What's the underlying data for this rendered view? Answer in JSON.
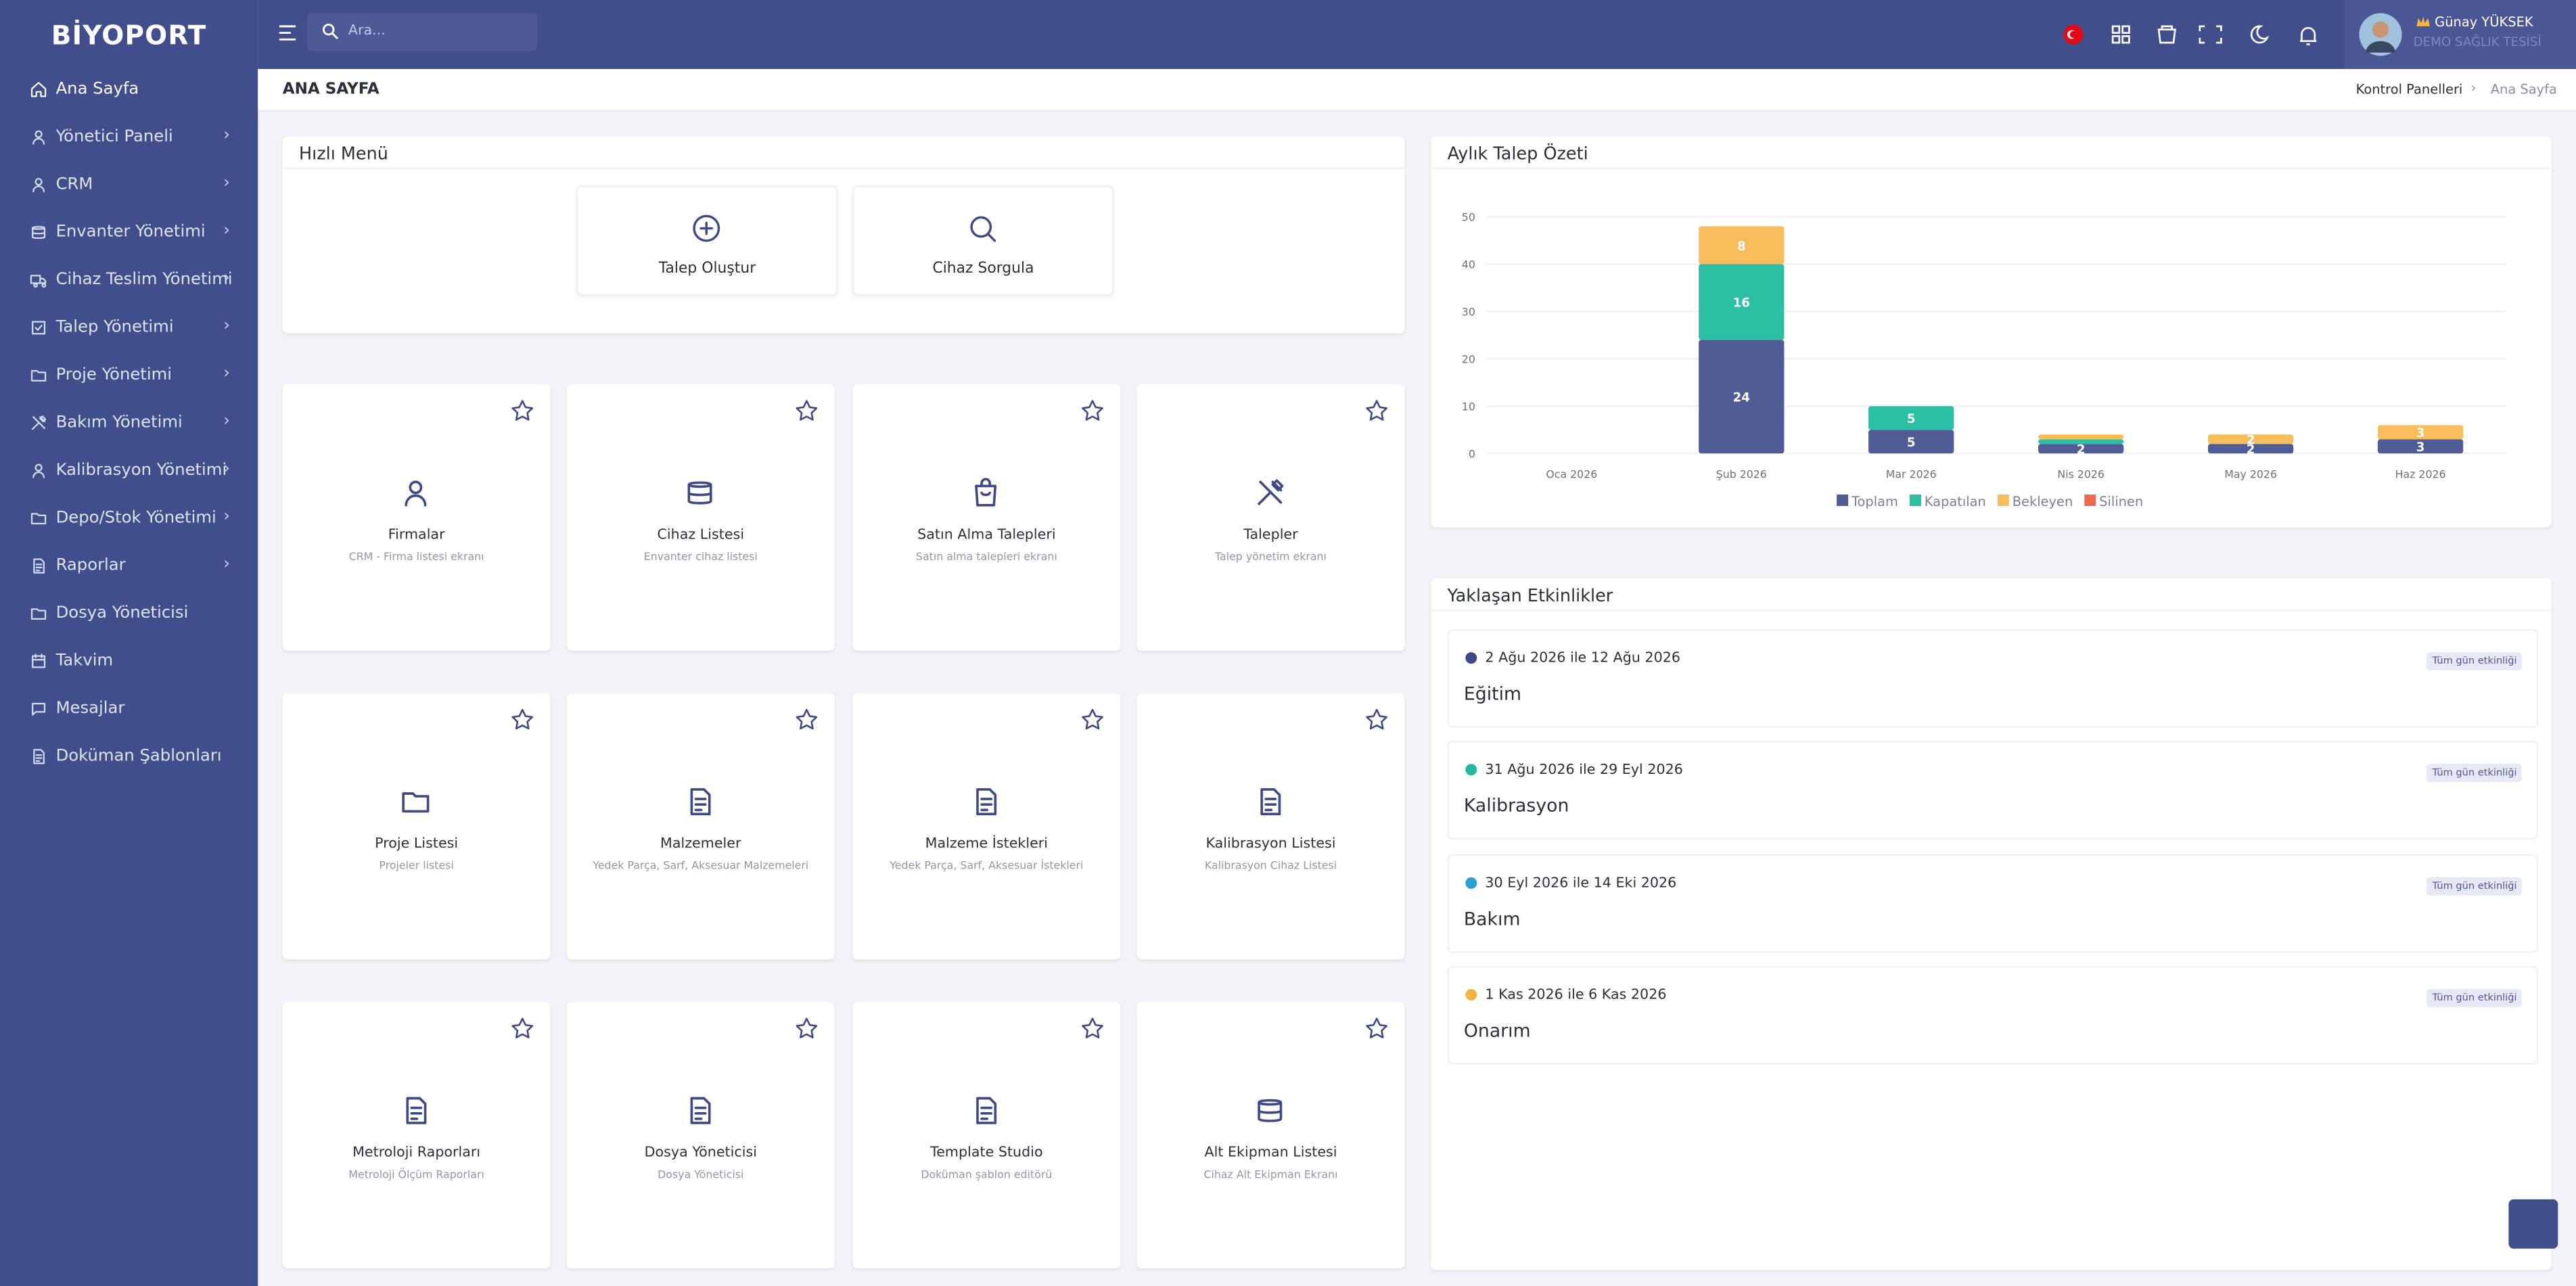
{
  "sidebar": {
    "logo": "BİYOPORT",
    "items": [
      {
        "label": "Ana Sayfa",
        "submenu": false
      },
      {
        "label": "Yönetici Paneli",
        "submenu": true
      },
      {
        "label": "CRM",
        "submenu": true
      },
      {
        "label": "Envanter Yönetimi",
        "submenu": true
      },
      {
        "label": "Cihaz Teslim Yönetimi",
        "submenu": true
      },
      {
        "label": "Talep Yönetimi",
        "submenu": true
      },
      {
        "label": "Proje Yönetimi",
        "submenu": true
      },
      {
        "label": "Bakım Yönetimi",
        "submenu": true
      },
      {
        "label": "Kalibrasyon Yönetimi",
        "submenu": true
      },
      {
        "label": "Depo/Stok Yönetimi",
        "submenu": true
      },
      {
        "label": "Raporlar",
        "submenu": true
      },
      {
        "label": "Dosya Yöneticisi",
        "submenu": false
      },
      {
        "label": "Takvim",
        "submenu": false
      },
      {
        "label": "Mesajlar",
        "submenu": false
      },
      {
        "label": "Doküman Şablonları",
        "submenu": false
      }
    ]
  },
  "header": {
    "search_placeholder": "Ara...",
    "user_name": "Günay YÜKSEK",
    "user_org": "DEMO SAĞLIK TESİSİ"
  },
  "page": {
    "title": "ANA SAYFA",
    "breadcrumb": [
      "Kontrol Panelleri",
      "Ana Sayfa"
    ]
  },
  "quick_menu": {
    "title": "Hızlı Menü",
    "items": [
      "Talep Oluştur",
      "Cihaz Sorgula"
    ]
  },
  "cards": [
    {
      "title": "Firmalar",
      "subtitle": "CRM - Firma listesi ekranı"
    },
    {
      "title": "Cihaz Listesi",
      "subtitle": "Envanter cihaz listesi"
    },
    {
      "title": "Satın Alma Talepleri",
      "subtitle": "Satın alma talepleri ekranı"
    },
    {
      "title": "Talepler",
      "subtitle": "Talep yönetim ekranı"
    },
    {
      "title": "Proje Listesi",
      "subtitle": "Projeler listesi"
    },
    {
      "title": "Malzemeler",
      "subtitle": "Yedek Parça, Sarf, Aksesuar Malzemeleri"
    },
    {
      "title": "Malzeme İstekleri",
      "subtitle": "Yedek Parça, Sarf, Aksesuar İstekleri"
    },
    {
      "title": "Kalibrasyon Listesi",
      "subtitle": "Kalibrasyon Cihaz Listesi"
    },
    {
      "title": "Metroloji Raporları",
      "subtitle": "Metroloji Ölçüm Raporları"
    },
    {
      "title": "Dosya Yöneticisi",
      "subtitle": "Dosya Yöneticisi"
    },
    {
      "title": "Template Studio",
      "subtitle": "Doküman şablon editörü"
    },
    {
      "title": "Alt Ekipman Listesi",
      "subtitle": "Cihaz Alt Ekipman Ekranı"
    }
  ],
  "chart_data": {
    "type": "stacked_bar",
    "title": "Aylık Talep Özeti",
    "categories": [
      "Oca 2026",
      "Şub 2026",
      "Mar 2026",
      "Nis 2026",
      "May 2026",
      "Haz 2026"
    ],
    "series": [
      {
        "name": "Toplam",
        "color": "#505c95",
        "values": [
          0,
          24,
          5,
          2,
          2,
          3
        ]
      },
      {
        "name": "Kapatılan",
        "color": "#2bbfa4",
        "values": [
          0,
          16,
          5,
          1,
          0,
          0
        ]
      },
      {
        "name": "Bekleyen",
        "color": "#f7bd5a",
        "values": [
          0,
          8,
          0,
          1,
          2,
          3
        ]
      },
      {
        "name": "Silinen",
        "color": "#ee6a4d",
        "values": [
          0,
          0,
          0,
          0,
          0,
          0
        ]
      }
    ],
    "ylim": [
      0,
      50
    ],
    "yticks": [
      0,
      10,
      20,
      30,
      40,
      50
    ],
    "grid": true,
    "legend": "bottom"
  },
  "events": {
    "title": "Yaklaşan Etkinlikler",
    "items": [
      {
        "date": "2 Ağu 2026 ile 12 Ağu 2026",
        "badge": "Tüm gün etkinliği",
        "name": "Eğitim",
        "color": "#3d4a85"
      },
      {
        "date": "31 Ağu 2026 ile 29 Eyl 2026",
        "badge": "Tüm gün etkinliği",
        "name": "Kalibrasyon",
        "color": "#22b89c"
      },
      {
        "date": "30 Eyl 2026 ile 14 Eki 2026",
        "badge": "Tüm gün etkinliği",
        "name": "Bakım",
        "color": "#2a9fd6"
      },
      {
        "date": "1 Kas 2026 ile 6 Kas 2026",
        "badge": "Tüm gün etkinliği",
        "name": "Onarım",
        "color": "#f2b544"
      }
    ]
  }
}
